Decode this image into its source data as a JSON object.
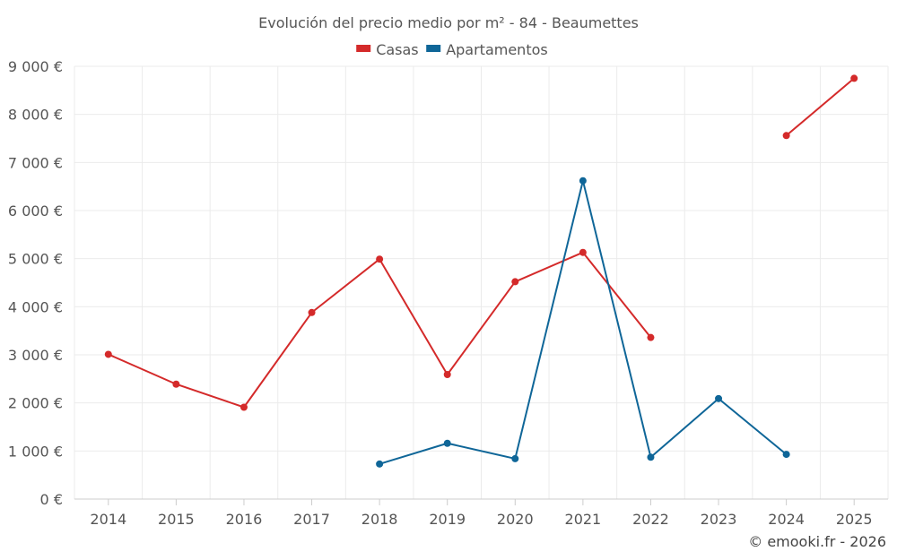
{
  "chart_data": {
    "type": "line",
    "title": "Evolución del precio medio por m² - 84 - Beaumettes",
    "x": [
      "2014",
      "2015",
      "2016",
      "2017",
      "2018",
      "2019",
      "2020",
      "2021",
      "2022",
      "2023",
      "2024",
      "2025"
    ],
    "ylim": [
      0,
      9000
    ],
    "yticks": [
      0,
      1000,
      2000,
      3000,
      4000,
      5000,
      6000,
      7000,
      8000,
      9000
    ],
    "ytick_labels": [
      "0 €",
      "1 000 €",
      "2 000 €",
      "3 000 €",
      "4 000 €",
      "5 000 €",
      "6 000 €",
      "7 000 €",
      "8 000 €",
      "9 000 €"
    ],
    "grid": true,
    "legend": "top-center",
    "series": [
      {
        "name": "Casas",
        "color": "#d42a2a",
        "values": [
          3010,
          2390,
          1910,
          3880,
          4990,
          2590,
          4520,
          5130,
          3360,
          null,
          7560,
          8750
        ]
      },
      {
        "name": "Apartamentos",
        "color": "#0f6698",
        "values": [
          null,
          null,
          null,
          null,
          730,
          1160,
          840,
          6620,
          870,
          2090,
          930,
          null
        ]
      }
    ]
  },
  "credit": "© emooki.fr - 2026"
}
